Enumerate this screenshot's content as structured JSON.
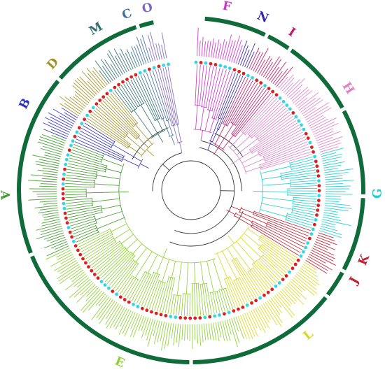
{
  "figure": {
    "type": "circular-phylogenetic-tree",
    "colors": {
      "outer_ring": "#0f6b3a",
      "marker_red": "#e11d1d",
      "marker_cyan": "#33d6e6",
      "backbone": "#333333"
    },
    "clades": [
      {
        "label": "F",
        "color": "#cc33cc"
      },
      {
        "label": "N",
        "color": "#3322aa"
      },
      {
        "label": "I",
        "color": "#c0186a"
      },
      {
        "label": "H",
        "color": "#e080c8"
      },
      {
        "label": "G",
        "color": "#1ccfcf"
      },
      {
        "label": "K",
        "color": "#c02030"
      },
      {
        "label": "J",
        "color": "#c02030"
      },
      {
        "label": "L",
        "color": "#d8d820"
      },
      {
        "label": "E",
        "color": "#8ccf30"
      },
      {
        "label": "A",
        "color": "#3f9a2a"
      },
      {
        "label": "B",
        "color": "#2f2fbf"
      },
      {
        "label": "D",
        "color": "#a09020"
      },
      {
        "label": "M",
        "color": "#2f6f6f"
      },
      {
        "label": "C",
        "color": "#3f6fa0"
      },
      {
        "label": "O",
        "color": "#7f66c0"
      }
    ]
  }
}
